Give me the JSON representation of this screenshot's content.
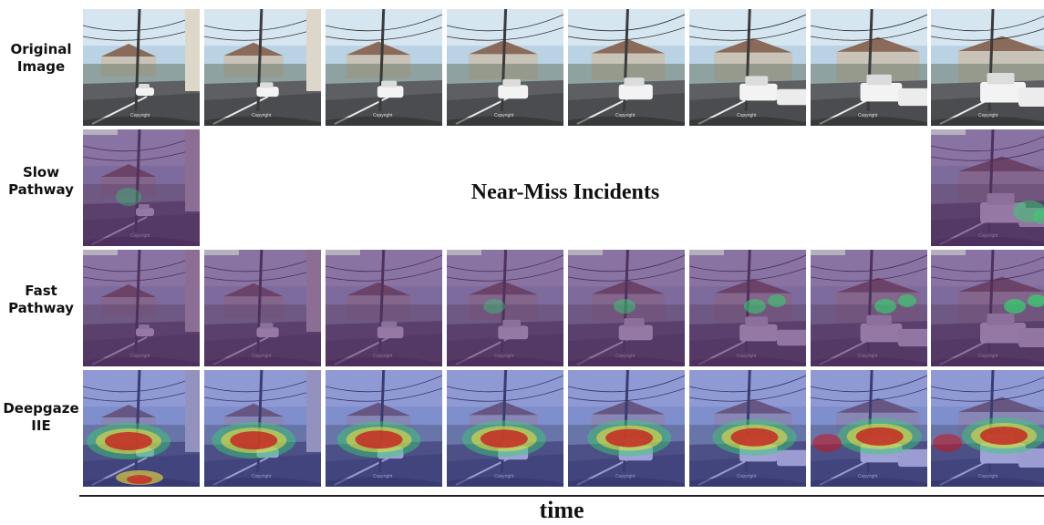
{
  "rows": [
    {
      "id": "original-image",
      "label": "Original\nImage",
      "kind": "original",
      "frames": [
        0,
        1,
        2,
        3,
        4,
        5,
        6,
        7
      ]
    },
    {
      "id": "slow-pathway",
      "label": "Slow\nPathway",
      "kind": "slow",
      "frames": [
        0,
        7
      ]
    },
    {
      "id": "fast-pathway",
      "label": "Fast\nPathway",
      "kind": "fast",
      "frames": [
        0,
        1,
        2,
        3,
        4,
        5,
        6,
        7
      ]
    },
    {
      "id": "deepgaze-iie",
      "label": "Deepgaze\nIIE",
      "kind": "deepgaze",
      "frames": [
        0,
        1,
        2,
        3,
        4,
        5,
        6,
        7
      ]
    }
  ],
  "center_text": "Near-Miss Incidents",
  "axis_label": "time",
  "colors": {
    "sky": "#b9d2e4",
    "overlay_purple": "#5b2b72",
    "overlay_blue": "#3a3fb4",
    "hot_red": "#c8141c",
    "hot_yellow": "#f4e23a",
    "cool_green": "#33d36e"
  }
}
